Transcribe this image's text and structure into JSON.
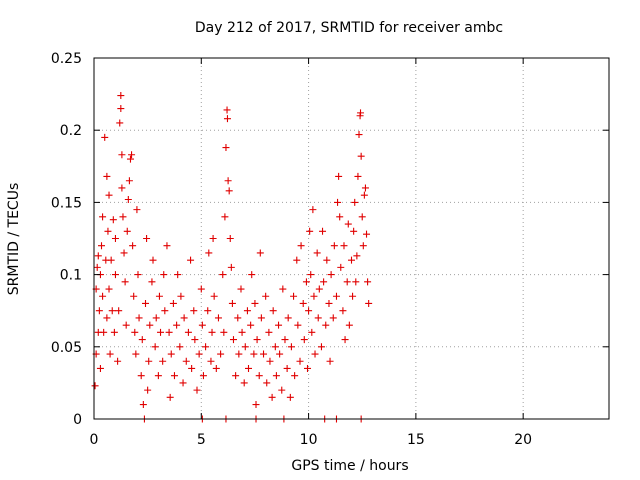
{
  "chart_data": {
    "type": "scatter",
    "title": "Day 212 of 2017, SRMTID for receiver ambc",
    "xlabel": "GPS time / hours",
    "ylabel": "SRMTID / TECUs",
    "xlim": [
      0,
      24
    ],
    "ylim": [
      0,
      0.25
    ],
    "xticks": [
      0,
      5,
      10,
      15,
      20
    ],
    "xtick_labels": [
      "0",
      "5",
      "10",
      "15",
      "20"
    ],
    "yticks": [
      0,
      0.05,
      0.1,
      0.15,
      0.2,
      0.25
    ],
    "ytick_labels": [
      "0",
      "0.05",
      "0.1",
      "0.15",
      "0.2",
      "0.25"
    ],
    "grid": true,
    "marker": "+",
    "series": [
      {
        "name": "SRMTID",
        "color": "#e00000",
        "points": [
          [
            0.05,
            0.023
          ],
          [
            0.1,
            0.045
          ],
          [
            0.1,
            0.09
          ],
          [
            0.15,
            0.105
          ],
          [
            0.2,
            0.06
          ],
          [
            0.2,
            0.113
          ],
          [
            0.25,
            0.075
          ],
          [
            0.3,
            0.035
          ],
          [
            0.3,
            0.1
          ],
          [
            0.35,
            0.12
          ],
          [
            0.4,
            0.085
          ],
          [
            0.4,
            0.14
          ],
          [
            0.45,
            0.06
          ],
          [
            0.5,
            0.195
          ],
          [
            0.55,
            0.11
          ],
          [
            0.6,
            0.168
          ],
          [
            0.6,
            0.07
          ],
          [
            0.65,
            0.13
          ],
          [
            0.7,
            0.155
          ],
          [
            0.7,
            0.09
          ],
          [
            0.75,
            0.045
          ],
          [
            0.8,
            0.11
          ],
          [
            0.85,
            0.075
          ],
          [
            0.9,
            0.138
          ],
          [
            0.95,
            0.06
          ],
          [
            1.0,
            0.1
          ],
          [
            1.0,
            0.125
          ],
          [
            1.1,
            0.04
          ],
          [
            1.15,
            0.075
          ],
          [
            1.2,
            0.205
          ],
          [
            1.25,
            0.215
          ],
          [
            1.25,
            0.224
          ],
          [
            1.3,
            0.183
          ],
          [
            1.3,
            0.16
          ],
          [
            1.35,
            0.14
          ],
          [
            1.4,
            0.115
          ],
          [
            1.45,
            0.095
          ],
          [
            1.5,
            0.065
          ],
          [
            1.55,
            0.13
          ],
          [
            1.6,
            0.152
          ],
          [
            1.65,
            0.165
          ],
          [
            1.7,
            0.18
          ],
          [
            1.75,
            0.183
          ],
          [
            1.8,
            0.12
          ],
          [
            1.85,
            0.085
          ],
          [
            1.9,
            0.06
          ],
          [
            1.95,
            0.045
          ],
          [
            2.0,
            0.145
          ],
          [
            2.05,
            0.1
          ],
          [
            2.1,
            0.07
          ],
          [
            2.2,
            0.03
          ],
          [
            2.25,
            0.055
          ],
          [
            2.3,
            0.01
          ],
          [
            2.4,
            0.08
          ],
          [
            2.45,
            0.125
          ],
          [
            2.5,
            0.02
          ],
          [
            2.55,
            0.04
          ],
          [
            2.6,
            0.065
          ],
          [
            2.7,
            0.095
          ],
          [
            2.75,
            0.11
          ],
          [
            2.85,
            0.05
          ],
          [
            2.9,
            0.07
          ],
          [
            3.0,
            0.03
          ],
          [
            3.05,
            0.085
          ],
          [
            3.1,
            0.06
          ],
          [
            3.2,
            0.04
          ],
          [
            3.25,
            0.1
          ],
          [
            3.3,
            0.075
          ],
          [
            3.4,
            0.12
          ],
          [
            3.5,
            0.06
          ],
          [
            3.55,
            0.015
          ],
          [
            3.6,
            0.045
          ],
          [
            3.7,
            0.08
          ],
          [
            3.75,
            0.03
          ],
          [
            3.85,
            0.065
          ],
          [
            3.9,
            0.1
          ],
          [
            4.0,
            0.05
          ],
          [
            4.05,
            0.085
          ],
          [
            4.15,
            0.025
          ],
          [
            4.2,
            0.07
          ],
          [
            4.3,
            0.04
          ],
          [
            4.4,
            0.06
          ],
          [
            4.5,
            0.11
          ],
          [
            4.55,
            0.035
          ],
          [
            4.65,
            0.075
          ],
          [
            4.7,
            0.055
          ],
          [
            4.8,
            0.02
          ],
          [
            4.9,
            0.045
          ],
          [
            5.0,
            0.09
          ],
          [
            5.05,
            0.065
          ],
          [
            5.1,
            0.03
          ],
          [
            5.2,
            0.05
          ],
          [
            5.3,
            0.075
          ],
          [
            5.35,
            0.115
          ],
          [
            5.45,
            0.04
          ],
          [
            5.5,
            0.06
          ],
          [
            5.55,
            0.125
          ],
          [
            5.6,
            0.085
          ],
          [
            5.7,
            0.035
          ],
          [
            5.8,
            0.07
          ],
          [
            5.9,
            0.045
          ],
          [
            6.0,
            0.1
          ],
          [
            6.05,
            0.06
          ],
          [
            6.1,
            0.14
          ],
          [
            6.15,
            0.188
          ],
          [
            6.2,
            0.214
          ],
          [
            6.22,
            0.208
          ],
          [
            6.25,
            0.165
          ],
          [
            6.3,
            0.158
          ],
          [
            6.35,
            0.125
          ],
          [
            6.4,
            0.105
          ],
          [
            6.45,
            0.08
          ],
          [
            6.5,
            0.055
          ],
          [
            6.6,
            0.03
          ],
          [
            6.7,
            0.07
          ],
          [
            6.75,
            0.045
          ],
          [
            6.85,
            0.09
          ],
          [
            6.9,
            0.06
          ],
          [
            7.0,
            0.025
          ],
          [
            7.05,
            0.05
          ],
          [
            7.15,
            0.075
          ],
          [
            7.2,
            0.035
          ],
          [
            7.3,
            0.065
          ],
          [
            7.35,
            0.1
          ],
          [
            7.45,
            0.045
          ],
          [
            7.5,
            0.08
          ],
          [
            7.55,
            0.01
          ],
          [
            7.6,
            0.055
          ],
          [
            7.7,
            0.03
          ],
          [
            7.75,
            0.115
          ],
          [
            7.8,
            0.07
          ],
          [
            7.9,
            0.045
          ],
          [
            8.0,
            0.085
          ],
          [
            8.05,
            0.025
          ],
          [
            8.15,
            0.06
          ],
          [
            8.2,
            0.04
          ],
          [
            8.3,
            0.015
          ],
          [
            8.35,
            0.075
          ],
          [
            8.45,
            0.05
          ],
          [
            8.5,
            0.03
          ],
          [
            8.6,
            0.065
          ],
          [
            8.65,
            0.045
          ],
          [
            8.75,
            0.02
          ],
          [
            8.8,
            0.09
          ],
          [
            8.9,
            0.055
          ],
          [
            9.0,
            0.035
          ],
          [
            9.05,
            0.07
          ],
          [
            9.15,
            0.015
          ],
          [
            9.2,
            0.05
          ],
          [
            9.3,
            0.085
          ],
          [
            9.35,
            0.03
          ],
          [
            9.45,
            0.11
          ],
          [
            9.5,
            0.065
          ],
          [
            9.6,
            0.04
          ],
          [
            9.65,
            0.12
          ],
          [
            9.75,
            0.08
          ],
          [
            9.8,
            0.055
          ],
          [
            9.9,
            0.095
          ],
          [
            9.95,
            0.035
          ],
          [
            10.0,
            0.075
          ],
          [
            10.05,
            0.13
          ],
          [
            10.1,
            0.1
          ],
          [
            10.15,
            0.06
          ],
          [
            10.2,
            0.145
          ],
          [
            10.25,
            0.085
          ],
          [
            10.3,
            0.045
          ],
          [
            10.4,
            0.115
          ],
          [
            10.45,
            0.07
          ],
          [
            10.5,
            0.09
          ],
          [
            10.6,
            0.05
          ],
          [
            10.65,
            0.13
          ],
          [
            10.7,
            0.095
          ],
          [
            10.8,
            0.065
          ],
          [
            10.85,
            0.11
          ],
          [
            10.95,
            0.08
          ],
          [
            11.0,
            0.04
          ],
          [
            11.05,
            0.1
          ],
          [
            11.15,
            0.07
          ],
          [
            11.2,
            0.12
          ],
          [
            11.3,
            0.085
          ],
          [
            11.35,
            0.15
          ],
          [
            11.4,
            0.168
          ],
          [
            11.45,
            0.14
          ],
          [
            11.5,
            0.105
          ],
          [
            11.6,
            0.075
          ],
          [
            11.65,
            0.12
          ],
          [
            11.7,
            0.055
          ],
          [
            11.8,
            0.095
          ],
          [
            11.85,
            0.135
          ],
          [
            11.9,
            0.065
          ],
          [
            12.0,
            0.11
          ],
          [
            12.05,
            0.085
          ],
          [
            12.1,
            0.13
          ],
          [
            12.15,
            0.15
          ],
          [
            12.2,
            0.095
          ],
          [
            12.25,
            0.113
          ],
          [
            12.3,
            0.168
          ],
          [
            12.35,
            0.197
          ],
          [
            12.4,
            0.21
          ],
          [
            12.42,
            0.212
          ],
          [
            12.45,
            0.182
          ],
          [
            12.5,
            0.14
          ],
          [
            12.55,
            0.12
          ],
          [
            12.6,
            0.155
          ],
          [
            12.65,
            0.16
          ],
          [
            12.7,
            0.128
          ],
          [
            12.75,
            0.095
          ],
          [
            12.8,
            0.08
          ],
          [
            2.35,
            0.0
          ],
          [
            5.05,
            0.0
          ],
          [
            6.15,
            0.0
          ],
          [
            7.55,
            0.0
          ],
          [
            8.85,
            0.0
          ],
          [
            10.75,
            0.0
          ],
          [
            11.3,
            0.0
          ],
          [
            12.45,
            0.0
          ]
        ]
      }
    ]
  }
}
